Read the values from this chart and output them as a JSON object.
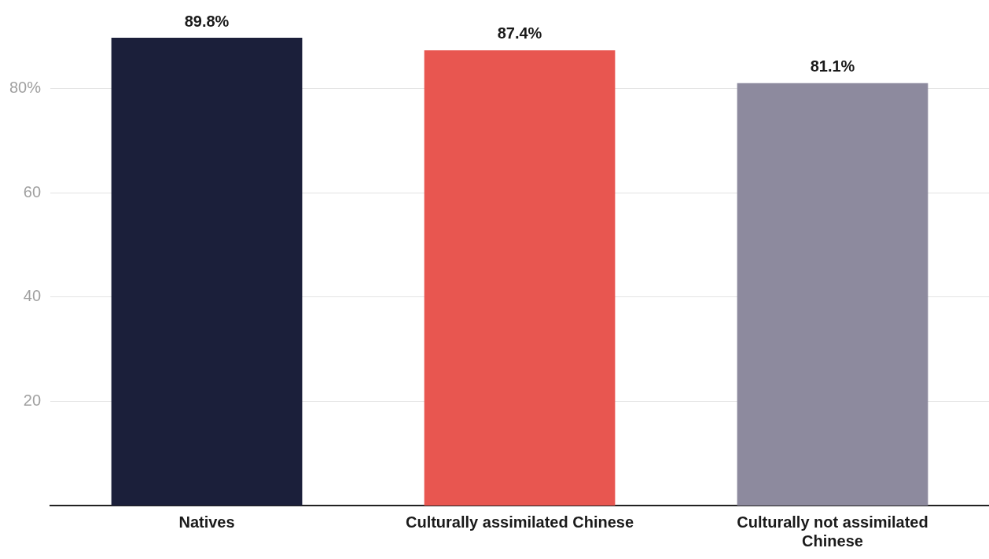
{
  "chart_data": {
    "type": "bar",
    "categories": [
      "Natives",
      "Culturally assimilated Chinese",
      "Culturally not assimilated Chinese"
    ],
    "values": [
      89.8,
      87.4,
      81.1
    ],
    "colors": [
      "#1b1f3a",
      "#e85650",
      "#8d8a9e"
    ],
    "value_labels": [
      "89.8%",
      "87.4%",
      "81.1%"
    ],
    "ylim": [
      0,
      89.8
    ],
    "yticks": [
      20,
      40,
      60,
      {
        "value": 80,
        "label": "80%"
      }
    ],
    "grid": "y",
    "legend": false
  }
}
